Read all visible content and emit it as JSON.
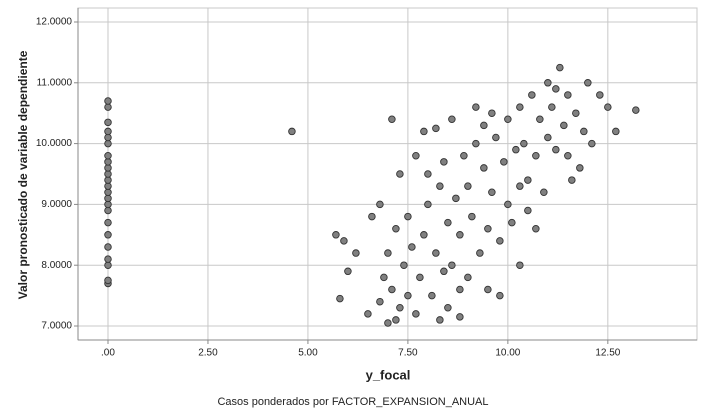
{
  "chart_data": {
    "type": "scatter",
    "x_label": "y_focal",
    "y_label": "Valor pronosticado de variable dependiente",
    "footnote": "Casos ponderados por FACTOR_EXPANSION_ANUAL",
    "color": "#808080",
    "edge_color": "#333333",
    "grid": true,
    "xlim": [
      -0.75,
      14.73
    ],
    "ylim": [
      6.77,
      12.23
    ],
    "xticks": [
      {
        "value": 0,
        "label": ".00"
      },
      {
        "value": 2.5,
        "label": "2.50"
      },
      {
        "value": 5,
        "label": "5.00"
      },
      {
        "value": 7.5,
        "label": "7.50"
      },
      {
        "value": 10,
        "label": "10.00"
      },
      {
        "value": 12.5,
        "label": "12.50"
      }
    ],
    "yticks": [
      {
        "value": 7,
        "label": "7.0000"
      },
      {
        "value": 8,
        "label": "8.0000"
      },
      {
        "value": 9,
        "label": "9.0000"
      },
      {
        "value": 10,
        "label": "10.0000"
      },
      {
        "value": 11,
        "label": "11.0000"
      },
      {
        "value": 12,
        "label": "12.0000"
      }
    ],
    "x": [
      0,
      0,
      0,
      0,
      0,
      0,
      0,
      0,
      0,
      0,
      0,
      0,
      0,
      0,
      0,
      0,
      0,
      0,
      0,
      0,
      0,
      0,
      0,
      4.6,
      5.7,
      5.9,
      6.2,
      6.0,
      5.8,
      6.5,
      6.6,
      6.8,
      7.0,
      7.2,
      7.3,
      7.7,
      7.9,
      8.2,
      8.6,
      9.2,
      7.1,
      11.8,
      12.0,
      12.3,
      12.5,
      12.7,
      13.2,
      11.3,
      10.7,
      10.3,
      9.5,
      9.8,
      8.8,
      8.3,
      12.1,
      11.6,
      6.8,
      6.9,
      7.0,
      7.1,
      7.2,
      7.3,
      7.4,
      7.5,
      7.5,
      7.6,
      7.7,
      7.8,
      7.9,
      8.0,
      8.1,
      8.2,
      8.3,
      8.4,
      8.5,
      8.5,
      8.0,
      8.4,
      8.6,
      8.7,
      8.8,
      8.9,
      9.0,
      9.0,
      9.1,
      9.2,
      9.3,
      9.4,
      8.8,
      9.4,
      9.5,
      9.6,
      9.7,
      9.8,
      9.9,
      10.0,
      10.0,
      10.1,
      10.2,
      10.3,
      10.3,
      9.6,
      10.4,
      10.5,
      10.6,
      10.7,
      10.8,
      10.9,
      11.0,
      11.0,
      11.1,
      11.2,
      10.5,
      11.2,
      11.4,
      11.5,
      11.7,
      11.9,
      11.5
    ],
    "y": [
      7.7,
      7.75,
      8.0,
      8.1,
      8.3,
      8.5,
      8.7,
      8.9,
      9.0,
      9.1,
      9.2,
      9.3,
      9.4,
      9.5,
      9.6,
      9.7,
      9.8,
      10.0,
      10.1,
      10.2,
      10.35,
      10.6,
      10.7,
      10.2,
      8.5,
      8.4,
      8.2,
      7.9,
      7.45,
      7.2,
      8.8,
      9.0,
      7.05,
      7.1,
      9.5,
      9.8,
      10.2,
      10.25,
      10.4,
      10.6,
      10.4,
      9.6,
      11.0,
      10.8,
      10.6,
      10.2,
      10.55,
      11.25,
      8.6,
      8.0,
      7.6,
      7.5,
      7.15,
      7.1,
      10.0,
      9.4,
      7.4,
      7.8,
      8.2,
      7.6,
      8.6,
      7.3,
      8.0,
      8.8,
      7.5,
      8.3,
      7.2,
      7.8,
      8.5,
      9.0,
      7.5,
      8.2,
      9.3,
      7.9,
      8.7,
      7.3,
      9.5,
      9.7,
      8.0,
      9.1,
      8.5,
      9.8,
      7.8,
      9.3,
      8.8,
      10.0,
      8.2,
      9.6,
      7.6,
      10.3,
      8.6,
      9.2,
      10.1,
      8.4,
      9.7,
      10.4,
      9.0,
      8.7,
      9.9,
      10.6,
      9.3,
      10.5,
      10.0,
      9.4,
      10.8,
      9.8,
      10.4,
      9.2,
      11.0,
      10.1,
      10.6,
      9.9,
      8.9,
      10.9,
      10.3,
      10.8,
      10.5,
      10.2,
      9.8
    ]
  }
}
